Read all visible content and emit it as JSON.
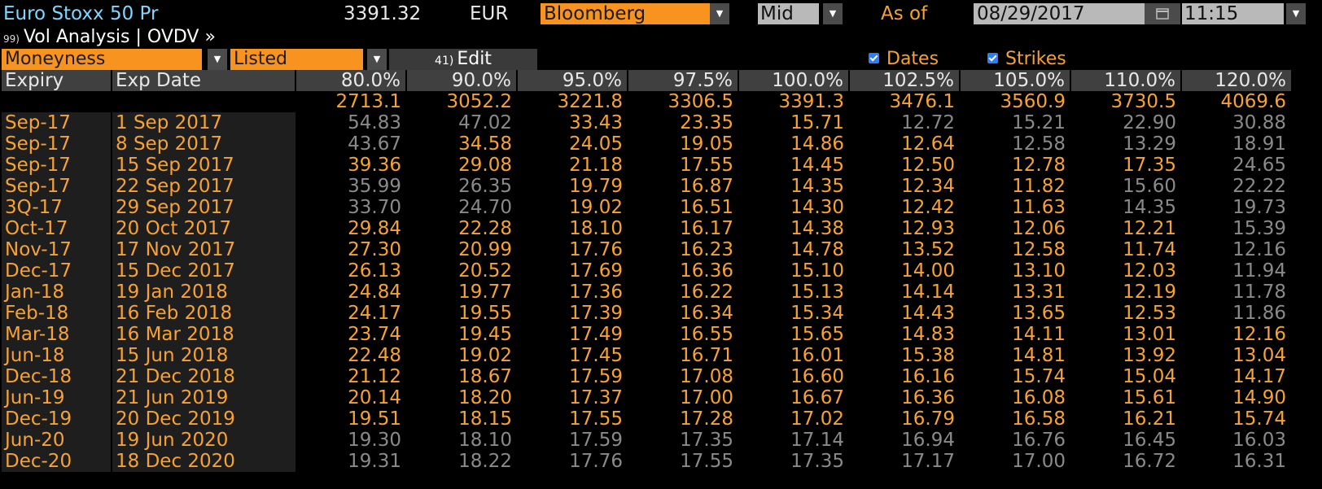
{
  "header": {
    "security": "Euro Stoxx 50 Pr",
    "price": "3391.32",
    "currency": "EUR",
    "source": "Bloomberg",
    "pricing": "Mid",
    "as_of_label": "As of",
    "date": "08/29/2017",
    "time": "11:15",
    "colors": {
      "accent": "#f7931e",
      "title": "#7fd6ff",
      "orange_text": "#f7a233",
      "grey_text": "#8a8a8a"
    }
  },
  "function_bar": {
    "number": "99)",
    "title": "Vol Analysis | OVDV »"
  },
  "toolbar": {
    "moneyness": "Moneyness",
    "listed": "Listed",
    "edit_number": "41)",
    "edit_label": "Edit",
    "dates_label": "Dates",
    "strikes_label": "Strikes"
  },
  "table": {
    "col_expiry": "Expiry",
    "col_exp_date": "Exp Date",
    "moneyness": [
      "80.0%",
      "90.0%",
      "95.0%",
      "97.5%",
      "100.0%",
      "102.5%",
      "105.0%",
      "110.0%",
      "120.0%"
    ],
    "strikes": [
      "2713.1",
      "3052.2",
      "3221.8",
      "3306.5",
      "3391.3",
      "3476.1",
      "3560.9",
      "3730.5",
      "4069.6"
    ],
    "rows": [
      {
        "expiry": "Sep-17",
        "date": "1 Sep 2017",
        "vols": [
          "54.83",
          "47.02",
          "33.43",
          "23.35",
          "15.71",
          "12.72",
          "15.21",
          "22.90",
          "30.88"
        ],
        "listed": [
          0,
          0,
          1,
          1,
          1,
          0,
          0,
          0,
          0
        ]
      },
      {
        "expiry": "Sep-17",
        "date": "8 Sep 2017",
        "vols": [
          "43.67",
          "34.58",
          "24.05",
          "19.05",
          "14.86",
          "12.64",
          "12.58",
          "13.29",
          "18.91"
        ],
        "listed": [
          0,
          1,
          1,
          1,
          1,
          1,
          0,
          0,
          0
        ]
      },
      {
        "expiry": "Sep-17",
        "date": "15 Sep 2017",
        "vols": [
          "39.36",
          "29.08",
          "21.18",
          "17.55",
          "14.45",
          "12.50",
          "12.78",
          "17.35",
          "24.65"
        ],
        "listed": [
          1,
          1,
          1,
          1,
          1,
          1,
          1,
          1,
          0
        ]
      },
      {
        "expiry": "Sep-17",
        "date": "22 Sep 2017",
        "vols": [
          "35.99",
          "26.35",
          "19.79",
          "16.87",
          "14.35",
          "12.34",
          "11.82",
          "15.60",
          "22.22"
        ],
        "listed": [
          0,
          0,
          1,
          1,
          1,
          1,
          1,
          0,
          0
        ]
      },
      {
        "expiry": "3Q-17",
        "date": "29 Sep 2017",
        "vols": [
          "33.70",
          "24.70",
          "19.02",
          "16.51",
          "14.30",
          "12.42",
          "11.63",
          "14.35",
          "19.73"
        ],
        "listed": [
          0,
          0,
          1,
          1,
          1,
          1,
          1,
          0,
          0
        ]
      },
      {
        "expiry": "Oct-17",
        "date": "20 Oct 2017",
        "vols": [
          "29.84",
          "22.28",
          "18.10",
          "16.17",
          "14.38",
          "12.93",
          "12.06",
          "12.21",
          "15.39"
        ],
        "listed": [
          1,
          1,
          1,
          1,
          1,
          1,
          1,
          1,
          0
        ]
      },
      {
        "expiry": "Nov-17",
        "date": "17 Nov 2017",
        "vols": [
          "27.30",
          "20.99",
          "17.76",
          "16.23",
          "14.78",
          "13.52",
          "12.58",
          "11.74",
          "12.16"
        ],
        "listed": [
          1,
          1,
          1,
          1,
          1,
          1,
          1,
          1,
          0
        ]
      },
      {
        "expiry": "Dec-17",
        "date": "15 Dec 2017",
        "vols": [
          "26.13",
          "20.52",
          "17.69",
          "16.36",
          "15.10",
          "14.00",
          "13.10",
          "12.03",
          "11.94"
        ],
        "listed": [
          1,
          1,
          1,
          1,
          1,
          1,
          1,
          1,
          0
        ]
      },
      {
        "expiry": "Jan-18",
        "date": "19 Jan 2018",
        "vols": [
          "24.84",
          "19.77",
          "17.36",
          "16.22",
          "15.13",
          "14.14",
          "13.31",
          "12.19",
          "11.78"
        ],
        "listed": [
          1,
          1,
          1,
          1,
          1,
          1,
          1,
          1,
          0
        ]
      },
      {
        "expiry": "Feb-18",
        "date": "16 Feb 2018",
        "vols": [
          "24.17",
          "19.55",
          "17.39",
          "16.34",
          "15.34",
          "14.43",
          "13.65",
          "12.53",
          "11.86"
        ],
        "listed": [
          1,
          1,
          1,
          1,
          1,
          1,
          1,
          1,
          0
        ]
      },
      {
        "expiry": "Mar-18",
        "date": "16 Mar 2018",
        "vols": [
          "23.74",
          "19.45",
          "17.49",
          "16.55",
          "15.65",
          "14.83",
          "14.11",
          "13.01",
          "12.16"
        ],
        "listed": [
          1,
          1,
          1,
          1,
          1,
          1,
          1,
          1,
          1
        ]
      },
      {
        "expiry": "Jun-18",
        "date": "15 Jun 2018",
        "vols": [
          "22.48",
          "19.02",
          "17.45",
          "16.71",
          "16.01",
          "15.38",
          "14.81",
          "13.92",
          "13.04"
        ],
        "listed": [
          1,
          1,
          1,
          1,
          1,
          1,
          1,
          1,
          1
        ]
      },
      {
        "expiry": "Dec-18",
        "date": "21 Dec 2018",
        "vols": [
          "21.12",
          "18.67",
          "17.59",
          "17.08",
          "16.60",
          "16.16",
          "15.74",
          "15.04",
          "14.17"
        ],
        "listed": [
          1,
          1,
          1,
          1,
          1,
          1,
          1,
          1,
          1
        ]
      },
      {
        "expiry": "Jun-19",
        "date": "21 Jun 2019",
        "vols": [
          "20.14",
          "18.20",
          "17.37",
          "17.00",
          "16.67",
          "16.36",
          "16.08",
          "15.61",
          "14.90"
        ],
        "listed": [
          1,
          1,
          1,
          1,
          1,
          1,
          1,
          1,
          1
        ]
      },
      {
        "expiry": "Dec-19",
        "date": "20 Dec 2019",
        "vols": [
          "19.51",
          "18.15",
          "17.55",
          "17.28",
          "17.02",
          "16.79",
          "16.58",
          "16.21",
          "15.74"
        ],
        "listed": [
          1,
          1,
          1,
          1,
          1,
          1,
          1,
          1,
          1
        ]
      },
      {
        "expiry": "Jun-20",
        "date": "19 Jun 2020",
        "vols": [
          "19.30",
          "18.10",
          "17.59",
          "17.35",
          "17.14",
          "16.94",
          "16.76",
          "16.45",
          "16.03"
        ],
        "listed": [
          0,
          0,
          0,
          0,
          0,
          0,
          0,
          0,
          0
        ]
      },
      {
        "expiry": "Dec-20",
        "date": "18 Dec 2020",
        "vols": [
          "19.31",
          "18.22",
          "17.76",
          "17.55",
          "17.35",
          "17.17",
          "17.00",
          "16.72",
          "16.31"
        ],
        "listed": [
          0,
          0,
          0,
          0,
          0,
          0,
          0,
          0,
          0
        ]
      }
    ]
  }
}
